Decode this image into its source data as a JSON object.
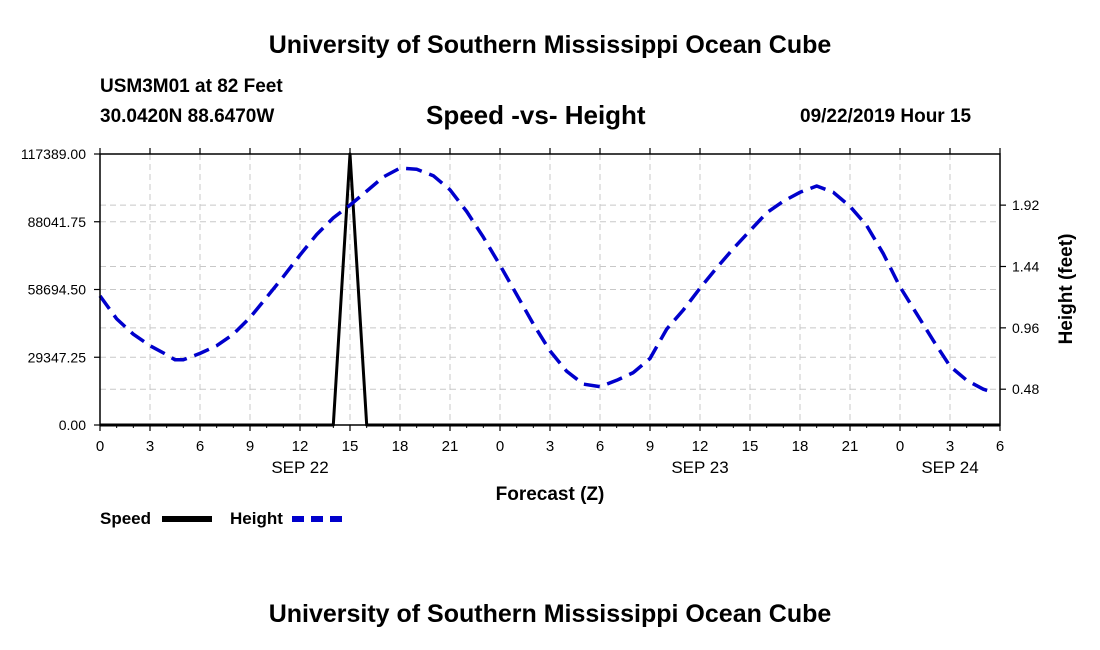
{
  "page": {
    "top_title": "University of Southern Mississippi Ocean Cube",
    "bottom_title": "University of Southern Mississippi Ocean Cube",
    "station": "USM3M01 at 82 Feet",
    "coords": "30.0420N 88.6470W",
    "subtitle": "Speed -vs- Height",
    "datetime": "09/22/2019 Hour 15"
  },
  "legend": {
    "speed": "Speed",
    "height": "Height"
  },
  "chart_data": {
    "type": "line",
    "title": "Speed -vs- Height",
    "xlabel": "Forecast (Z)",
    "ylabel_right": "Height (feet)",
    "x_range_hours": [
      0,
      54
    ],
    "x_tick_labels": [
      "0",
      "3",
      "6",
      "9",
      "12",
      "15",
      "18",
      "21",
      "0",
      "3",
      "6",
      "9",
      "12",
      "15",
      "18",
      "21",
      "0",
      "3",
      "6"
    ],
    "date_labels": [
      {
        "label": "SEP 22",
        "hour": 12
      },
      {
        "label": "SEP 23",
        "hour": 36
      },
      {
        "label": "SEP 24",
        "hour": 51
      }
    ],
    "y_left": {
      "range": [
        0,
        117389.0
      ],
      "ticks": [
        "0.00",
        "29347.25",
        "58694.50",
        "88041.75",
        "117389.00"
      ]
    },
    "y_right": {
      "range": [
        0.2,
        2.32
      ],
      "ticks": [
        "0.48",
        "0.96",
        "1.44",
        "1.92"
      ]
    },
    "grid": true,
    "colors": {
      "speed": "#000000",
      "height": "#0000cc",
      "grid": "#c8c8c8"
    },
    "series": [
      {
        "name": "Speed",
        "axis": "left",
        "x": [
          0,
          14,
          15,
          16,
          54
        ],
        "values": [
          0,
          0,
          117389,
          0,
          0
        ]
      },
      {
        "name": "Height",
        "axis": "right",
        "x": [
          0,
          1,
          2,
          3,
          4,
          4.5,
          5,
          6,
          7,
          8,
          9,
          10,
          11,
          12,
          13,
          14,
          15,
          16,
          17,
          18,
          19,
          20,
          21,
          22,
          23,
          24,
          25,
          26,
          27,
          28,
          29,
          30,
          31,
          32,
          33,
          34,
          35,
          36,
          37,
          38,
          39,
          40,
          41,
          42,
          43,
          44,
          45,
          46,
          47,
          48,
          49,
          50,
          51,
          52,
          53,
          53.5
        ],
        "values": [
          1.21,
          1.03,
          0.91,
          0.82,
          0.75,
          0.71,
          0.71,
          0.76,
          0.82,
          0.91,
          1.04,
          1.2,
          1.36,
          1.53,
          1.69,
          1.82,
          1.92,
          2.03,
          2.14,
          2.21,
          2.2,
          2.15,
          2.04,
          1.87,
          1.67,
          1.45,
          1.22,
          0.99,
          0.78,
          0.62,
          0.52,
          0.5,
          0.55,
          0.61,
          0.72,
          0.95,
          1.1,
          1.27,
          1.43,
          1.58,
          1.72,
          1.86,
          1.95,
          2.02,
          2.07,
          2.02,
          1.91,
          1.76,
          1.54,
          1.28,
          1.07,
          0.86,
          0.66,
          0.55,
          0.48,
          0.46
        ]
      }
    ]
  }
}
